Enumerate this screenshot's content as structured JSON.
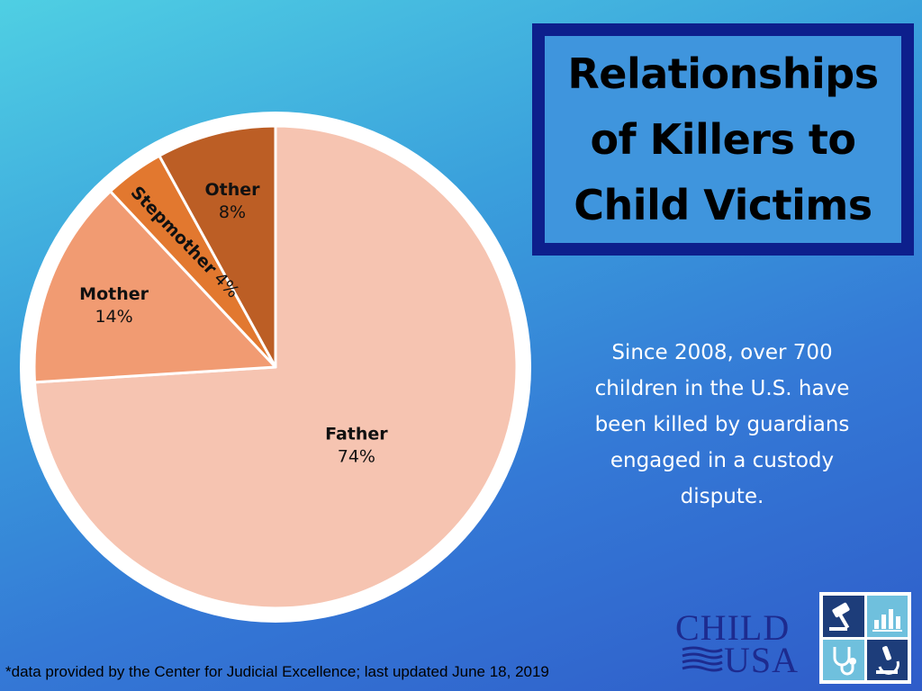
{
  "title": "Relationships of Killers to Child Victims",
  "blurb": "Since 2008, over 700 children in the U.S. have been killed by guardians engaged in a custody dispute.",
  "footnote": "*data provided by the Center for Judicial Excellence; last updated June 18, 2019",
  "logo": {
    "line1": "CHILD",
    "line2": "USA"
  },
  "colors": {
    "title_border": "#0d1f8c",
    "title_fill": "#3f95dd",
    "logo_navy": "#1d3d7a",
    "logo_light": "#6fc0dd"
  },
  "chart_data": {
    "type": "pie",
    "title": "Relationships of Killers to Child Victims",
    "start": "12 o'clock",
    "direction": "clockwise",
    "slices": [
      {
        "label": "Father",
        "value": 74,
        "display": "74%",
        "color": "#f6c4b1"
      },
      {
        "label": "Mother",
        "value": 14,
        "display": "14%",
        "color": "#f19b72"
      },
      {
        "label": "Stepmother",
        "value": 4,
        "display": "4%",
        "color": "#e2782f"
      },
      {
        "label": "Other",
        "value": 8,
        "display": "8%",
        "color": "#bc5e25"
      }
    ]
  }
}
